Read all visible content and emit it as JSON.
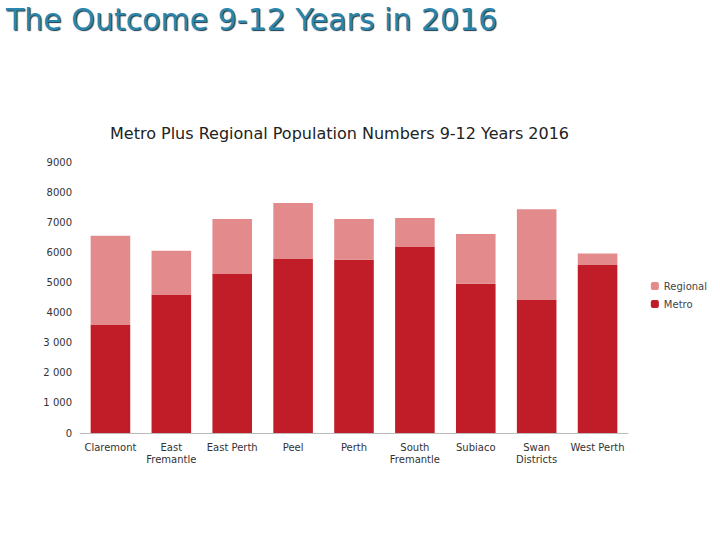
{
  "header": {
    "title": "The Outcome 9-12 Years in 2016"
  },
  "chart_data": {
    "type": "bar",
    "title": "Metro Plus Regional Population Numbers 9-12 Years 2016",
    "categories": [
      "Claremont",
      "East\nFremantle",
      "East Perth",
      "Peel",
      "Perth",
      "South\nFremantle",
      "Subiaco",
      "Swan\nDistricts",
      "West Perth"
    ],
    "series": [
      {
        "name": "Metro",
        "color": "#c01d28",
        "values": [
          3600,
          4600,
          5280,
          5780,
          5750,
          6190,
          4960,
          4420,
          5580
        ]
      },
      {
        "name": "Regional",
        "color": "#e38a8c",
        "values": [
          2950,
          1450,
          1830,
          1860,
          1360,
          950,
          1650,
          3010,
          380
        ]
      }
    ],
    "stacked": true,
    "ylim": [
      0,
      9000
    ],
    "yticks": [
      0,
      {
        "value": 1000,
        "label": "1 000"
      },
      {
        "value": 2000,
        "label": "2 000"
      },
      {
        "value": 3000,
        "label": "3 000"
      },
      4000,
      5000,
      6000,
      7000,
      8000,
      9000
    ],
    "grid": false,
    "legend": "right"
  }
}
